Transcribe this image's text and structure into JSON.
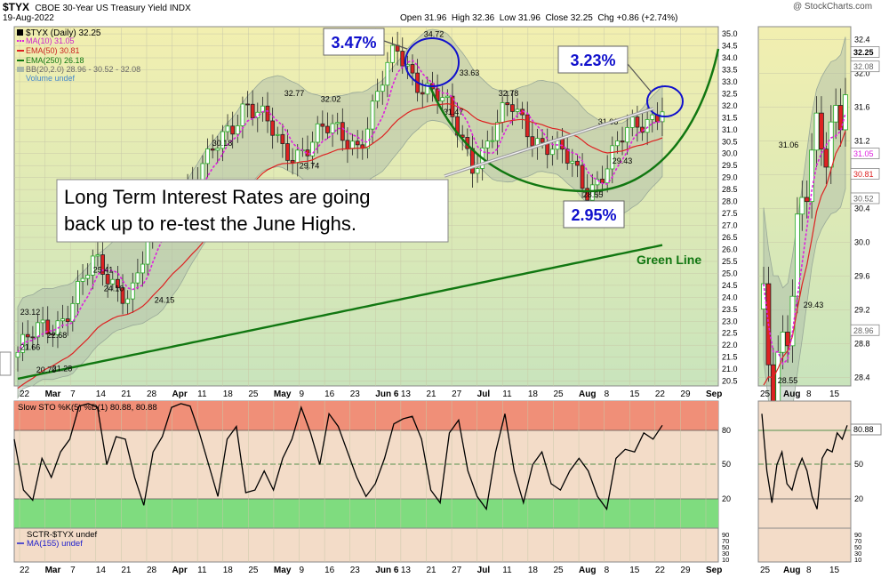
{
  "header": {
    "ticker": "$TYX",
    "name": "CBOE 30-Year US Treasury Yield INDX",
    "date": "19-Aug-2022",
    "ohlc": "Open 31.96  High 32.36  Low 31.96  Close 32.25  Chg +0.86 (+2.74%)",
    "watermark": "@ StockCharts.com"
  },
  "legend": {
    "symbol": "$TYX (Daily) 32.25",
    "ma10": "MA(10) 31.05",
    "ema50": "EMA(50) 30.81",
    "ema250": "EMA(250) 26.18",
    "bb": "BB(20,2.0) 28.96 - 30.52 - 32.08",
    "volume": "Volume undef"
  },
  "annotations": {
    "main_text_1": "Long Term Interest Rates are going",
    "main_text_2": "back up to re-test the June Highs.",
    "pct_june": "3.47%",
    "pct_aug": "3.23%",
    "pct_low": "2.95%",
    "green_line": "Green Line"
  },
  "colors": {
    "candle_up": "#22aa22",
    "candle_down": "#dd2222",
    "ma10": "#dd22dd",
    "ema50": "#dd2222",
    "ema250": "#117711",
    "bb_fill": "#b9c9b9",
    "oversold": "#7fdc7f",
    "overbought": "#f08f78",
    "bg_top": "#f2efb0",
    "bg_bottom": "#c9e4bc",
    "blue_box": "#1010cc"
  },
  "x_labels": [
    "22",
    "Mar",
    "7",
    "14",
    "21",
    "28",
    "Apr",
    "11",
    "18",
    "25",
    "May",
    "9",
    "16",
    "23",
    "Jun 6",
    "13",
    "21",
    "27",
    "Jul",
    "11",
    "18",
    "25",
    "Aug",
    "8",
    "15",
    "22",
    "29",
    "Sep"
  ],
  "zoom_x_labels": [
    "25",
    "Aug",
    "8",
    "15"
  ],
  "price_labels": [
    "35.0",
    "34.5",
    "34.0",
    "33.5",
    "33.0",
    "32.5",
    "32.0",
    "31.5",
    "31.0",
    "30.5",
    "30.0",
    "29.5",
    "29.0",
    "28.5",
    "28.0",
    "27.5",
    "27.0",
    "26.5",
    "26.0",
    "25.5",
    "25.0",
    "24.5",
    "24.0",
    "23.5",
    "23.0",
    "22.5",
    "22.0",
    "21.5",
    "21.0",
    "20.5"
  ],
  "zoom_price_labels": [
    "32.4",
    "32.0",
    "31.6",
    "31.2",
    "30.8",
    "30.4",
    "30.0",
    "29.6",
    "29.2",
    "28.8",
    "28.4"
  ],
  "zoom_value_tags": [
    "32.25",
    "32.08",
    "31.05",
    "30.81",
    "30.52",
    "28.96"
  ],
  "stoch": {
    "label": "Slow STO %K(5) %D(1) 80.88, 80.88",
    "value_tag": "80.88",
    "levels": [
      "80",
      "50",
      "20"
    ]
  },
  "sctr": {
    "label1": "SCTR-$TYX undef",
    "label2": "MA(155) undef",
    "levels": [
      "90",
      "70",
      "50",
      "30",
      "10"
    ]
  },
  "chart_data": {
    "type": "line",
    "title": "$TYX CBOE 30-Year US Treasury Yield INDX",
    "price_series": {
      "dates": [
        "2022-02-22",
        "2022-03-07",
        "2022-03-21",
        "2022-04-01",
        "2022-04-11",
        "2022-04-21",
        "2022-05-06",
        "2022-05-13",
        "2022-05-20",
        "2022-06-01",
        "2022-06-14",
        "2022-06-24",
        "2022-07-01",
        "2022-07-08",
        "2022-07-20",
        "2022-08-01",
        "2022-08-10",
        "2022-08-19"
      ],
      "close": [
        21.7,
        23.0,
        25.2,
        24.3,
        28.2,
        29.4,
        32.4,
        30.0,
        30.8,
        30.6,
        34.2,
        32.5,
        29.8,
        31.8,
        30.4,
        28.6,
        30.5,
        32.25
      ]
    },
    "price_labels_on_chart": [
      {
        "label": "23.12",
        "value": 23.12
      },
      {
        "label": "22.68",
        "value": 22.68
      },
      {
        "label": "21.66",
        "value": 21.66
      },
      {
        "label": "21.28",
        "value": 21.28
      },
      {
        "label": "20.70",
        "value": 20.7
      },
      {
        "label": "25.41",
        "value": 25.41
      },
      {
        "label": "24.10",
        "value": 24.1
      },
      {
        "label": "24.15",
        "value": 24.15
      },
      {
        "label": "30.18",
        "value": 30.18
      },
      {
        "label": "32.77",
        "value": 32.77
      },
      {
        "label": "32.02",
        "value": 32.02
      },
      {
        "label": "29.74",
        "value": 29.74
      },
      {
        "label": "34.72",
        "value": 34.72
      },
      {
        "label": "33.63",
        "value": 33.63
      },
      {
        "label": "31.47",
        "value": 31.47
      },
      {
        "label": "32.78",
        "value": 32.78
      },
      {
        "label": "31.06",
        "value": 31.06
      },
      {
        "label": "28.55",
        "value": 28.55
      },
      {
        "label": "29.43",
        "value": 29.43
      }
    ],
    "stoch_k": [
      70,
      30,
      22,
      55,
      40,
      60,
      70,
      96,
      98,
      95,
      50,
      72,
      70,
      40,
      18,
      60,
      72,
      95,
      98,
      96,
      75,
      50,
      25,
      70,
      80,
      28,
      30,
      45,
      30,
      55,
      70,
      95,
      75,
      50,
      90,
      80,
      60,
      40,
      25,
      35,
      55,
      82,
      86,
      88,
      70,
      30,
      20,
      75,
      85,
      45,
      25,
      15,
      60,
      90,
      45,
      20,
      50,
      60,
      35,
      30,
      45,
      55,
      45,
      25,
      15,
      55,
      62,
      60,
      75,
      70,
      80.88
    ],
    "ylim": [
      20.3,
      35.3
    ],
    "stoch_ylim": [
      0,
      100
    ]
  }
}
